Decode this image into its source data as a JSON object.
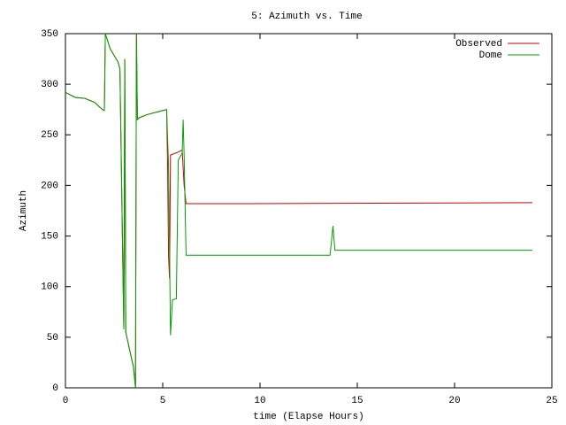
{
  "chart_data": {
    "type": "line",
    "title": "5: Azimuth vs. Time",
    "x_label": "time (Elapse Hours)",
    "y_label": "Azimuth",
    "xlim": [
      0,
      25
    ],
    "ylim": [
      0,
      350
    ],
    "xticks": [
      0,
      5,
      10,
      15,
      20,
      25
    ],
    "yticks": [
      0,
      50,
      100,
      150,
      200,
      250,
      300,
      350
    ],
    "legend": "top-right",
    "series": [
      {
        "name": "Observed",
        "color": "#cc0000",
        "x": [
          0,
          0.5,
          1.0,
          1.5,
          1.9,
          2.0,
          2.05,
          2.3,
          2.7,
          2.8,
          2.85,
          2.95,
          3.0,
          3.05,
          3.1,
          3.5,
          3.6,
          3.65,
          3.7,
          3.8,
          4.2,
          5.0,
          5.2,
          5.25,
          5.3,
          5.35,
          5.4,
          5.8,
          6.0,
          6.1,
          6.2,
          9.5,
          24
        ],
        "values": [
          292,
          287,
          286,
          282,
          275,
          274,
          350,
          335,
          322,
          315,
          250,
          120,
          58,
          325,
          55,
          20,
          0,
          350,
          265,
          267,
          270,
          274,
          275,
          220,
          130,
          108,
          230,
          233,
          235,
          200,
          182,
          182,
          183
        ]
      },
      {
        "name": "Dome",
        "color": "#00a000",
        "x": [
          0,
          0.5,
          1.0,
          1.5,
          1.9,
          2.0,
          2.05,
          2.3,
          2.7,
          2.8,
          2.85,
          2.95,
          3.0,
          3.05,
          3.1,
          3.5,
          3.6,
          3.65,
          3.7,
          3.8,
          4.2,
          5.0,
          5.2,
          5.3,
          5.4,
          5.5,
          5.7,
          5.8,
          6.0,
          6.05,
          6.1,
          6.2,
          13.6,
          13.75,
          13.85,
          24
        ],
        "values": [
          292,
          287,
          286,
          282,
          275,
          274,
          350,
          335,
          322,
          315,
          250,
          120,
          58,
          325,
          55,
          20,
          0,
          350,
          265,
          267,
          270,
          274,
          275,
          220,
          52,
          87,
          88,
          225,
          232,
          265,
          230,
          131,
          131,
          160,
          136,
          136
        ]
      }
    ]
  }
}
